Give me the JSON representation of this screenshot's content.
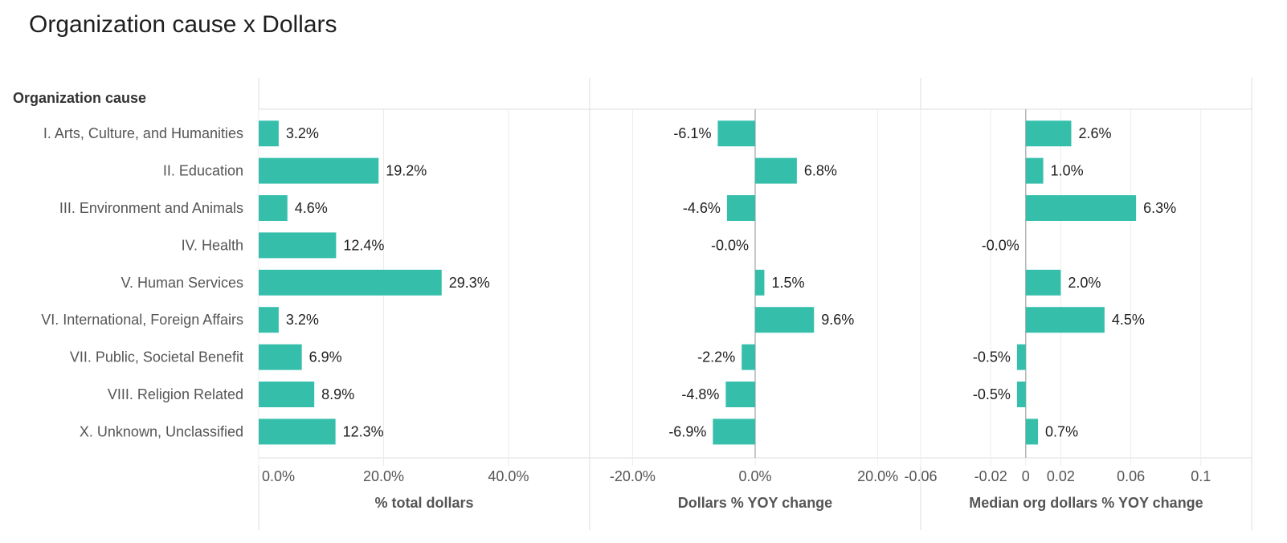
{
  "title": "Organization cause x Dollars",
  "row_header": "Organization cause",
  "bar_color": "#35bfab",
  "chart_data": [
    {
      "type": "bar",
      "orientation": "horizontal",
      "xlabel": "% total dollars",
      "categories": [
        "I. Arts, Culture, and Humanities",
        "II. Education",
        "III. Environment and Animals",
        "IV. Health",
        "V. Human Services",
        "VI. International, Foreign Affairs",
        "VII. Public, Societal Benefit",
        "VIII. Religion Related",
        "X. Unknown, Unclassified"
      ],
      "values": [
        3.2,
        19.2,
        4.6,
        12.4,
        29.3,
        3.2,
        6.9,
        8.9,
        12.3
      ],
      "labels": [
        "3.2%",
        "19.2%",
        "4.6%",
        "12.4%",
        "29.3%",
        "3.2%",
        "6.9%",
        "8.9%",
        "12.3%"
      ],
      "xlim": [
        0,
        53
      ],
      "ticks": [
        0,
        20,
        40
      ],
      "tick_labels": [
        "0.0%",
        "20.0%",
        "40.0%"
      ],
      "grid": true
    },
    {
      "type": "bar",
      "orientation": "horizontal",
      "xlabel": "Dollars % YOY change",
      "categories": [
        "I. Arts, Culture, and Humanities",
        "II. Education",
        "III. Environment and Animals",
        "IV. Health",
        "V. Human Services",
        "VI. International, Foreign Affairs",
        "VII. Public, Societal Benefit",
        "VIII. Religion Related",
        "X. Unknown, Unclassified"
      ],
      "values": [
        -6.1,
        6.8,
        -4.6,
        -0.0,
        1.5,
        9.6,
        -2.2,
        -4.8,
        -6.9
      ],
      "labels": [
        "-6.1%",
        "6.8%",
        "-4.6%",
        "-0.0%",
        "1.5%",
        "9.6%",
        "-2.2%",
        "-4.8%",
        "-6.9%"
      ],
      "xlim": [
        -27,
        27
      ],
      "ticks": [
        -20,
        0,
        20
      ],
      "tick_labels": [
        "-20.0%",
        "0.0%",
        "20.0%"
      ],
      "grid": true
    },
    {
      "type": "bar",
      "orientation": "horizontal",
      "xlabel": "Median org dollars % YOY change",
      "categories": [
        "I. Arts, Culture, and Humanities",
        "II. Education",
        "III. Environment and Animals",
        "IV. Health",
        "V. Human Services",
        "VI. International, Foreign Affairs",
        "VII. Public, Societal Benefit",
        "VIII. Religion Related",
        "X. Unknown, Unclassified"
      ],
      "values": [
        0.026,
        0.01,
        0.063,
        -0.0,
        0.02,
        0.045,
        -0.005,
        -0.005,
        0.007
      ],
      "labels": [
        "2.6%",
        "1.0%",
        "6.3%",
        "-0.0%",
        "2.0%",
        "4.5%",
        "-0.5%",
        "-0.5%",
        "0.7%"
      ],
      "xlim": [
        -0.06,
        0.129
      ],
      "ticks": [
        -0.06,
        -0.02,
        0,
        0.02,
        0.06,
        0.1
      ],
      "tick_labels": [
        "-0.06",
        "-0.02",
        "0",
        "0.02",
        "0.06",
        "0.1"
      ],
      "grid": true
    }
  ]
}
